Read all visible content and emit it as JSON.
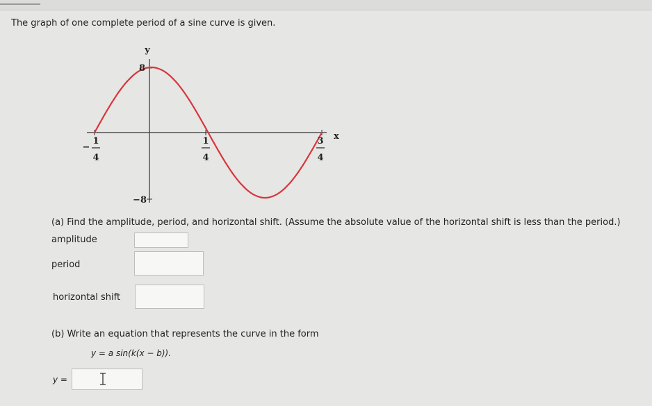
{
  "intro": "The graph of one complete period of a sine curve is given.",
  "graph": {
    "y_label": "y",
    "x_label": "x",
    "y_top": "8",
    "y_bottom": "−8",
    "x_left": {
      "sign": "−",
      "numerator": "1",
      "denominator": "4"
    },
    "x_mid": {
      "numerator": "1",
      "denominator": "4"
    },
    "x_right": {
      "numerator": "3",
      "denominator": "4"
    }
  },
  "part_a": {
    "question": "(a) Find the amplitude, period, and horizontal shift. (Assume the absolute value of the horizontal shift is less than the period.)",
    "fields": [
      "amplitude",
      "period",
      "horizontal shift"
    ]
  },
  "part_b": {
    "question": "(b) Write an equation that represents the curve in the form",
    "form": "y = a sin(k(x − b)).",
    "answer_label": "y ="
  }
}
